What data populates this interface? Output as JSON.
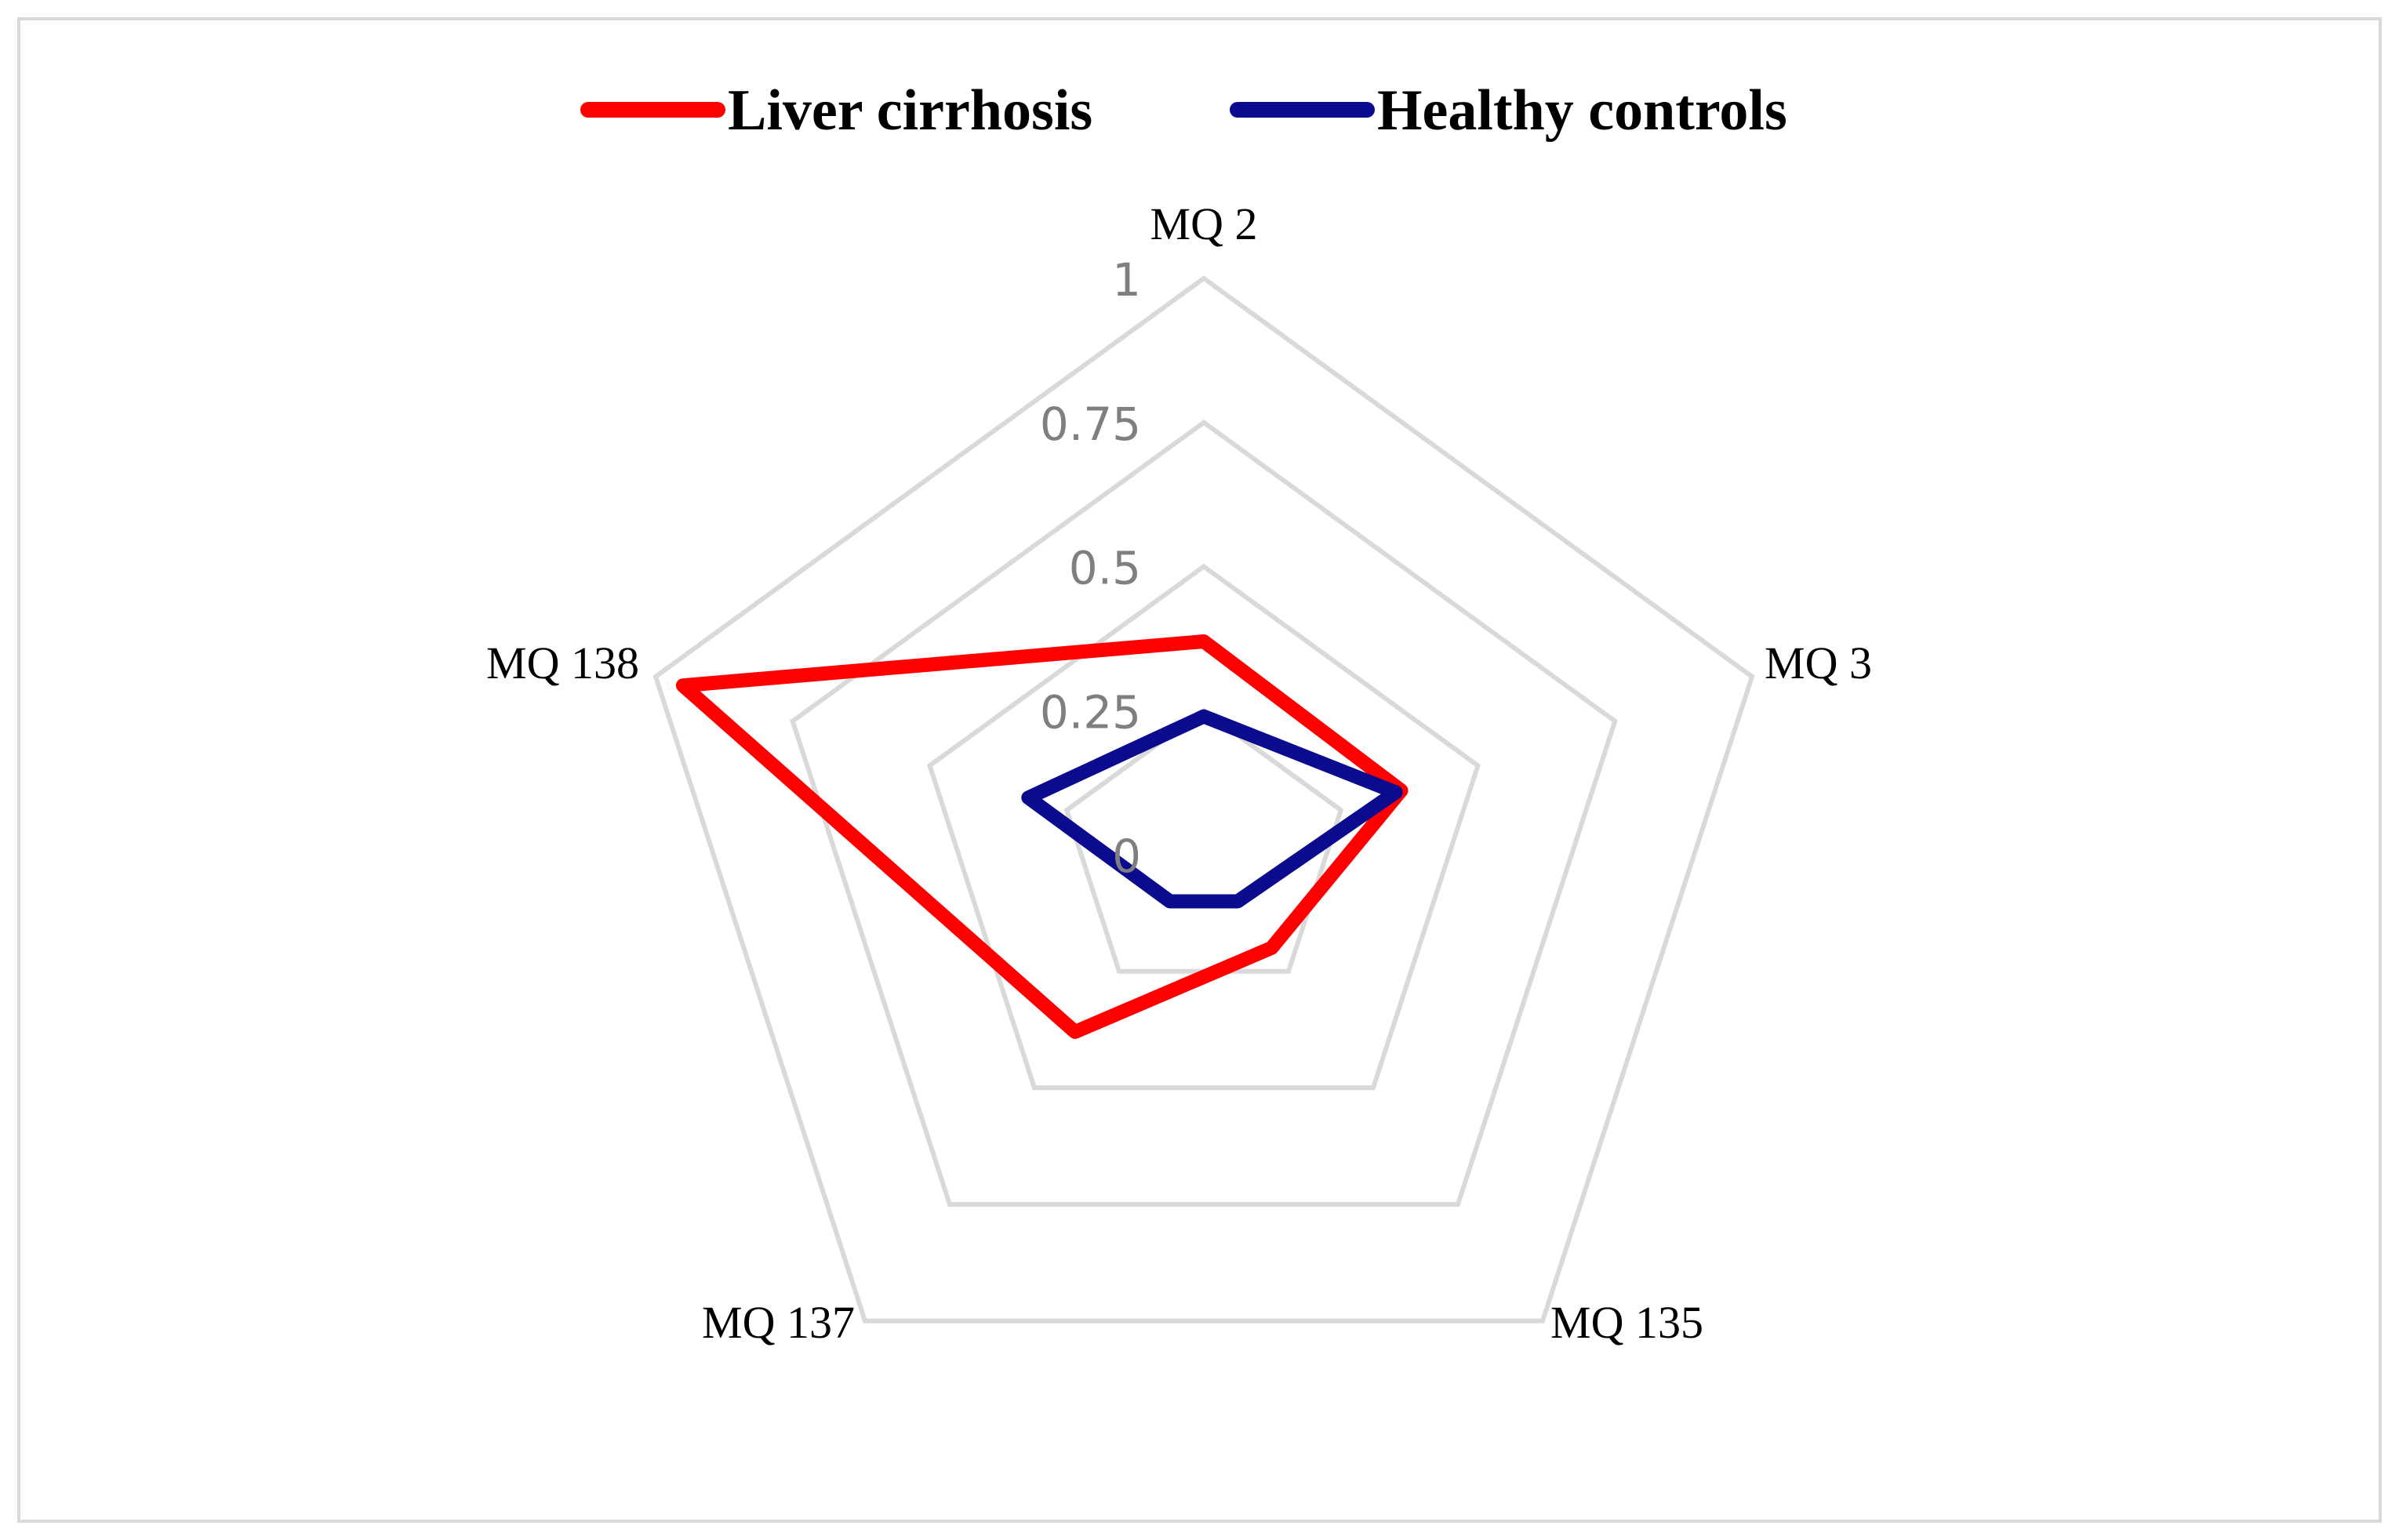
{
  "chart_data": {
    "type": "radar",
    "axes": [
      "MQ 2",
      "MQ 3",
      "MQ 135",
      "MQ 137",
      "MQ 138"
    ],
    "rlim": [
      0,
      1
    ],
    "ticks": [
      "0",
      "0.25",
      "0.5",
      "0.75",
      "1"
    ],
    "tick_values": [
      0,
      0.25,
      0.5,
      0.75,
      1
    ],
    "grid": true,
    "legend_position": "top",
    "series": [
      {
        "name": "Liver cirrhosis",
        "color": "#ff0000",
        "values": [
          0.37,
          0.36,
          0.2,
          0.38,
          0.95
        ]
      },
      {
        "name": "Healthy controls",
        "color": "#0b0b8f",
        "values": [
          0.24,
          0.35,
          0.1,
          0.1,
          0.32
        ]
      }
    ]
  }
}
